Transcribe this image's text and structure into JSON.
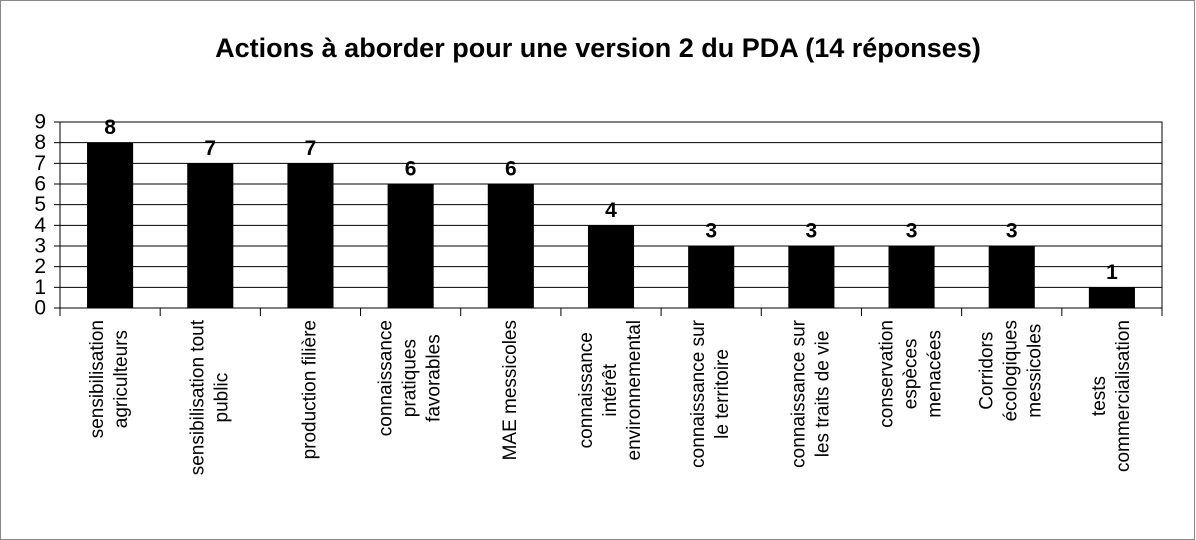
{
  "chart_data": {
    "type": "bar",
    "title": "Actions à aborder pour une version 2 du PDA (14 réponses)",
    "categories": [
      "sensibilisation\nagriculteurs",
      "sensibilisation tout\npublic",
      "production filière",
      "connaissance\npratiques\nfavorables",
      "MAE messicoles",
      "connaissance\nintérêt\nenvironnemental",
      "connaissance sur\nle territoire",
      "connaissance sur\nles traits de vie",
      "conservation\nespèces\nmenacées",
      "Corridors\nécologiques\nmessicoles",
      "tests\ncommercialisation"
    ],
    "values": [
      8,
      7,
      7,
      6,
      6,
      4,
      3,
      3,
      3,
      3,
      1
    ],
    "color": "#000000",
    "ylim": [
      0,
      9
    ],
    "yticks": [
      0,
      1,
      2,
      3,
      4,
      5,
      6,
      7,
      8,
      9
    ],
    "grid": true
  }
}
